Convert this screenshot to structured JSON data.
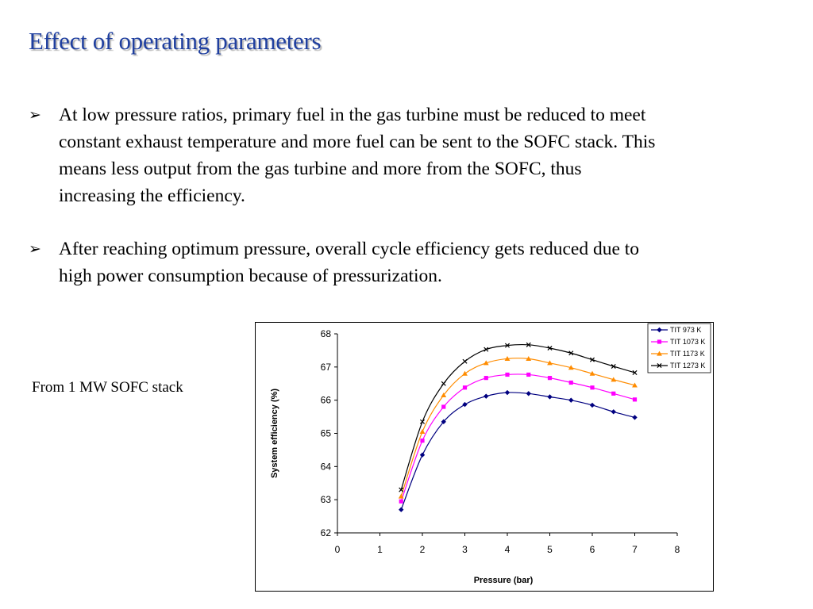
{
  "slide": {
    "title": "Effect of operating parameters",
    "bullet_symbol": "➢",
    "bullets": [
      "At low pressure ratios, primary fuel in the gas turbine must be reduced to meet constant exhaust temperature and more fuel can be sent to the SOFC stack. This means less output from the gas turbine and more from the SOFC, thus increasing the efficiency.",
      "After reaching optimum pressure, overall cycle efficiency gets reduced due to high power consumption because of pressurization."
    ],
    "caption": "From 1 MW SOFC stack"
  },
  "chart_data": {
    "type": "line",
    "title": "",
    "xlabel": "Pressure (bar)",
    "ylabel": "System efficiency (%)",
    "xlim": [
      0,
      8
    ],
    "ylim": [
      62,
      68
    ],
    "xticks": [
      0,
      1,
      2,
      3,
      4,
      5,
      6,
      7,
      8
    ],
    "yticks": [
      62,
      63,
      64,
      65,
      66,
      67,
      68
    ],
    "grid": false,
    "legend_position": "top-right",
    "x": [
      1.5,
      2,
      2.5,
      3,
      3.5,
      4,
      4.5,
      5,
      5.5,
      6,
      6.5,
      7
    ],
    "series": [
      {
        "name": "TIT 973 K",
        "color": "#000080",
        "marker": "diamond",
        "values": [
          62.7,
          64.35,
          65.35,
          65.87,
          66.12,
          66.23,
          66.2,
          66.1,
          66.0,
          65.85,
          65.65,
          65.48
        ]
      },
      {
        "name": "TIT 1073 K",
        "color": "#ff00ff",
        "marker": "square",
        "values": [
          62.95,
          64.78,
          65.8,
          66.38,
          66.67,
          66.77,
          66.77,
          66.67,
          66.53,
          66.38,
          66.2,
          66.02
        ]
      },
      {
        "name": "TIT 1173 K",
        "color": "#ff8c00",
        "marker": "triangle",
        "values": [
          63.1,
          65.05,
          66.15,
          66.8,
          67.12,
          67.25,
          67.25,
          67.12,
          66.98,
          66.8,
          66.62,
          66.45
        ]
      },
      {
        "name": "TIT 1273 K",
        "color": "#000000",
        "marker": "x",
        "values": [
          63.3,
          65.35,
          66.5,
          67.17,
          67.53,
          67.65,
          67.67,
          67.57,
          67.42,
          67.22,
          67.02,
          66.83
        ]
      }
    ]
  }
}
